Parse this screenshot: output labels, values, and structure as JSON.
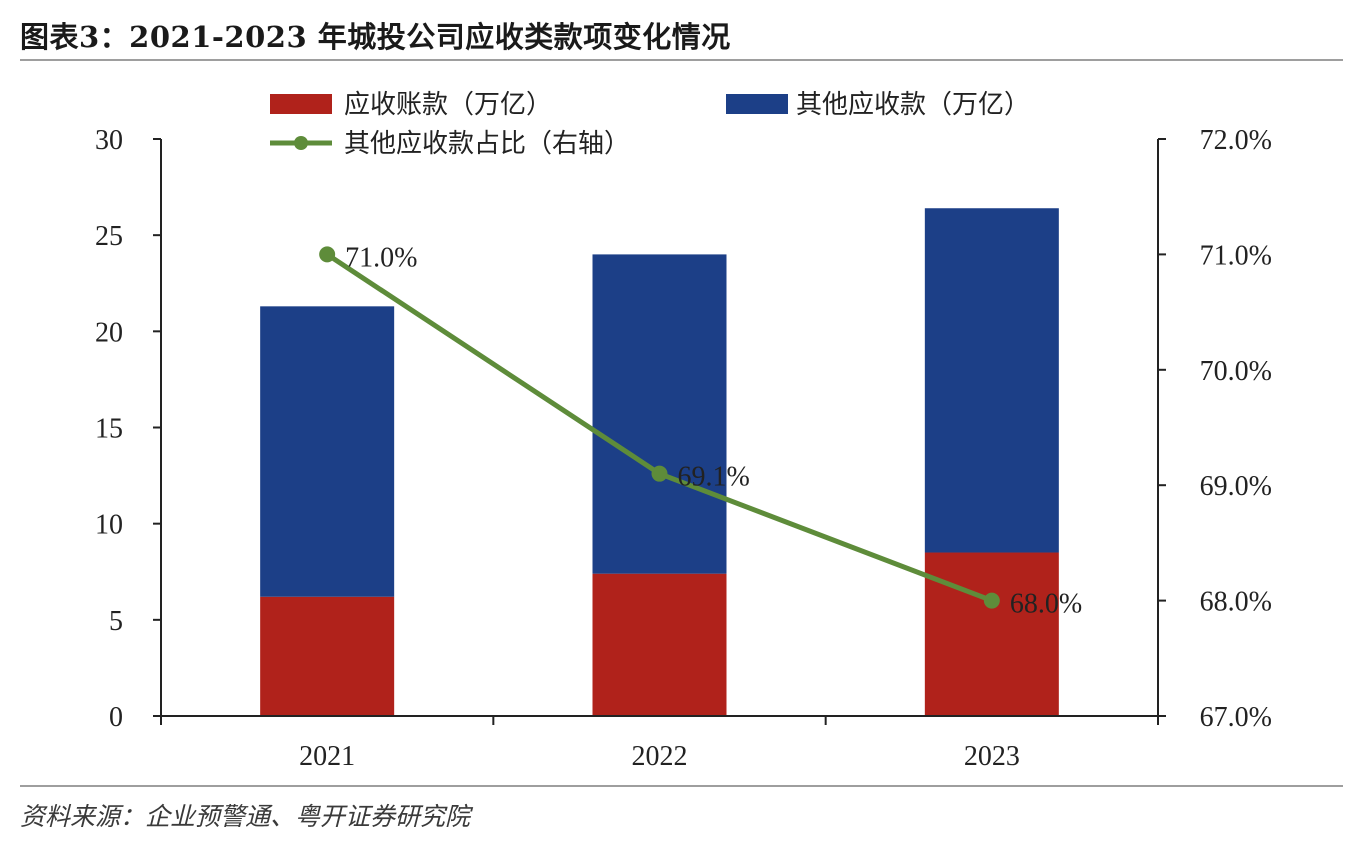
{
  "header": {
    "title": "图表3：2021-2023 年城投公司应收类款项变化情况"
  },
  "footer": {
    "source": "资料来源：企业预警通、粤开证券研究院"
  },
  "colors": {
    "accounts_receivable": "#B0221B",
    "other_receivables": "#1C3F87",
    "ratio_line": "#5E8C3A",
    "axis": "#222222",
    "rule": "#9E9E9E"
  },
  "chart_data": {
    "type": "bar",
    "stacked": true,
    "title": "2021-2023 年城投公司应收类款项变化情况",
    "categories": [
      "2021",
      "2022",
      "2023"
    ],
    "series": [
      {
        "name": "应收账款（万亿）",
        "type": "bar",
        "axis": "left",
        "color_key": "accounts_receivable",
        "values": [
          6.2,
          7.4,
          8.5
        ]
      },
      {
        "name": "其他应收款（万亿）",
        "type": "bar",
        "axis": "left",
        "color_key": "other_receivables",
        "values": [
          15.1,
          16.6,
          17.9
        ]
      },
      {
        "name": "其他应收款占比（右轴）",
        "type": "line",
        "axis": "right",
        "color_key": "ratio_line",
        "values": [
          71.0,
          69.1,
          68.0
        ],
        "labels": [
          "71.0%",
          "69.1%",
          "68.0%"
        ]
      }
    ],
    "left_axis": {
      "min": 0,
      "max": 30,
      "step": 5,
      "ticks": [
        "0",
        "5",
        "10",
        "15",
        "20",
        "25",
        "30"
      ]
    },
    "right_axis": {
      "min": 67.0,
      "max": 72.0,
      "step": 1.0,
      "ticks": [
        "67.0%",
        "68.0%",
        "69.0%",
        "70.0%",
        "71.0%",
        "72.0%"
      ]
    },
    "xlabel": "",
    "ylabel": "",
    "grid": false,
    "legend_position": "top"
  }
}
